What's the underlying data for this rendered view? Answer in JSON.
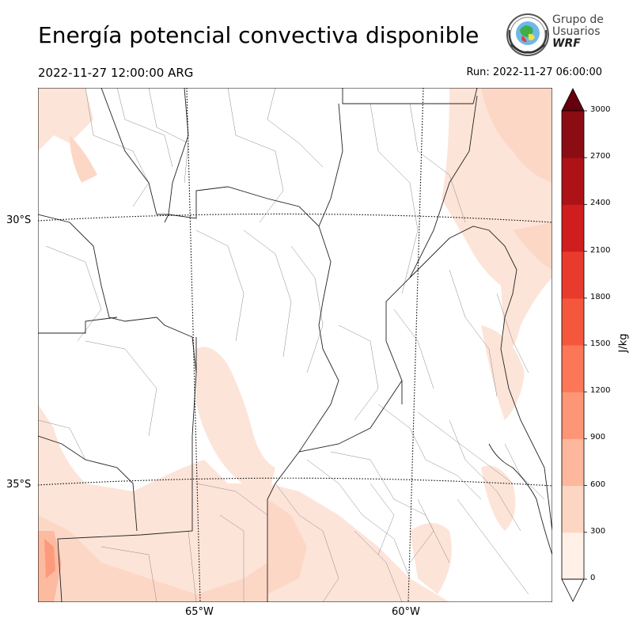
{
  "header": {
    "title": "Energía potencial convectiva disponible",
    "valid_time": "2022-11-27 12:00:00 ARG",
    "run_time": "Run: 2022-11-27 06:00:00"
  },
  "logo": {
    "line1": "Grupo de",
    "line2": "Usuarios",
    "line3": "WRF"
  },
  "map": {
    "latitude_labels": [
      "30°S",
      "35°S"
    ],
    "longitude_labels": [
      "65°W",
      "60°W"
    ]
  },
  "colorbar": {
    "label": "J/kg",
    "ticks": [
      "0",
      "300",
      "600",
      "900",
      "1200",
      "1500",
      "1800",
      "2100",
      "2400",
      "2700",
      "3000"
    ],
    "colors": [
      "#fff0e8",
      "#fdd5c3",
      "#fcb79c",
      "#fc9676",
      "#fb7757",
      "#f5573d",
      "#e83a2d",
      "#d01d1e",
      "#ad1217",
      "#8c0c13",
      "#67000d"
    ],
    "extend": "both"
  }
}
